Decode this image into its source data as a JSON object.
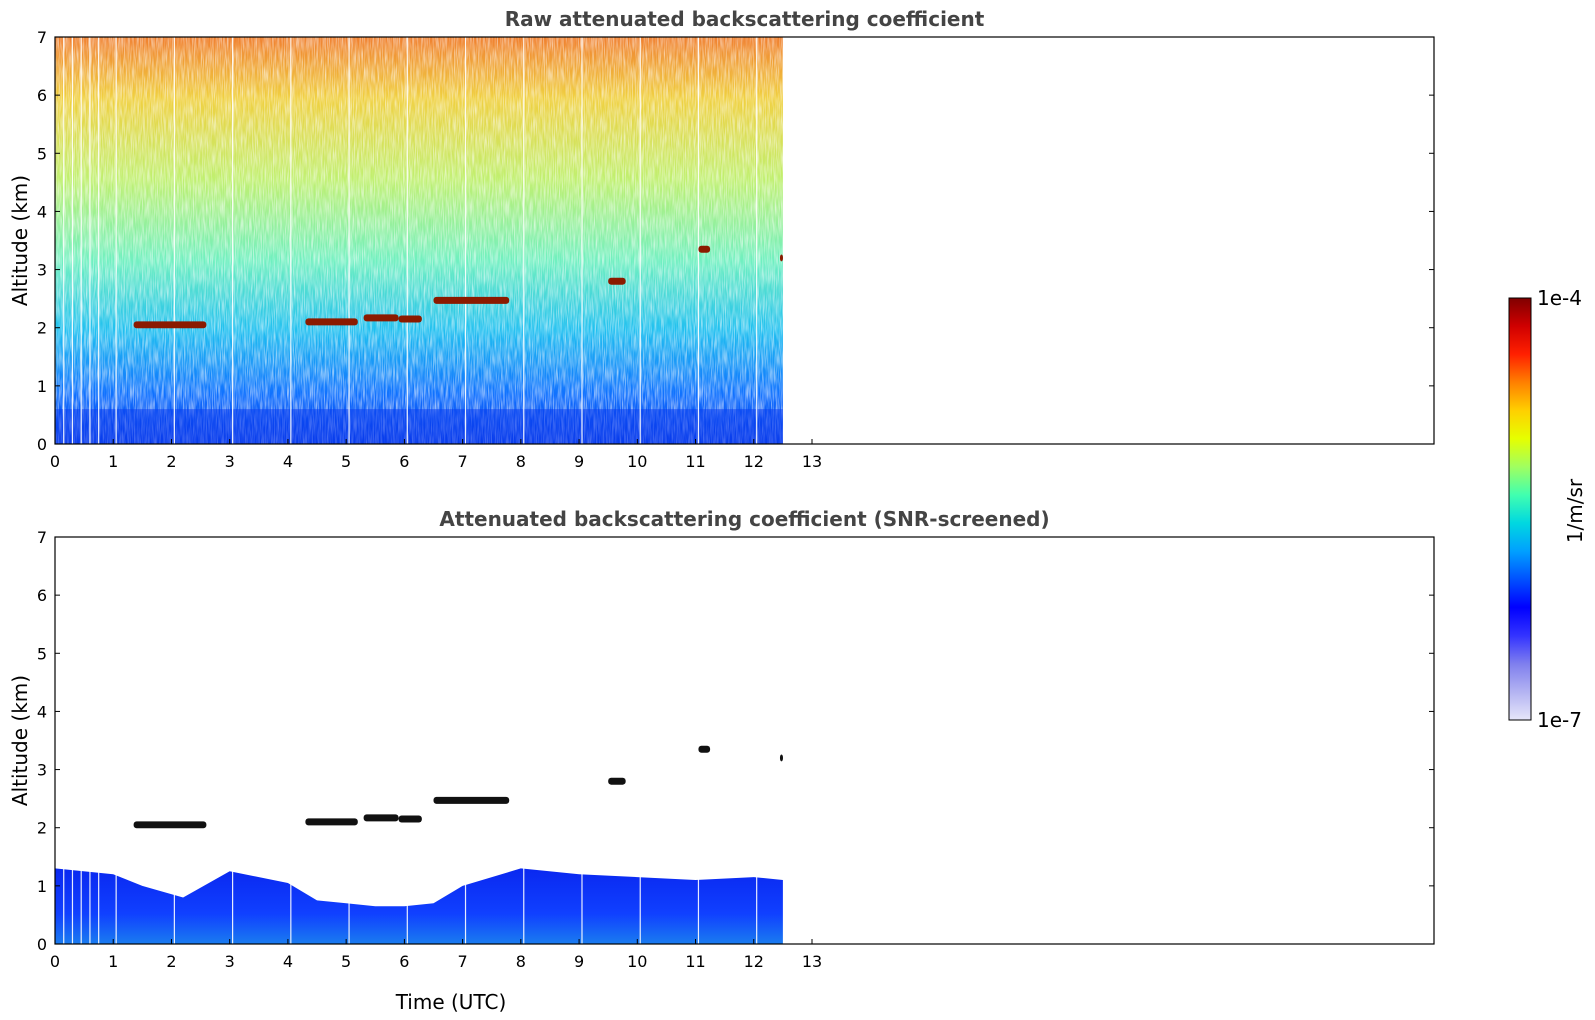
{
  "chart_data": [
    {
      "type": "heatmap",
      "title": "Raw attenuated backscattering coefficient",
      "xlabel": "",
      "ylabel": "Altitude (km)",
      "xlim": [
        0,
        24
      ],
      "ylim": [
        0,
        7
      ],
      "xticks": [
        "0",
        "1",
        "2",
        "3",
        "4",
        "5",
        "6",
        "7",
        "8",
        "9",
        "10",
        "11",
        "12",
        "13"
      ],
      "yticks": [
        "0",
        "1",
        "2",
        "3",
        "4",
        "5",
        "6",
        "7"
      ],
      "data_end_time": 12.5,
      "color_scale": "log",
      "cloud_layers": [
        {
          "t_start": 1.35,
          "t_end": 2.6,
          "alt": 2.05
        },
        {
          "t_start": 4.3,
          "t_end": 5.2,
          "alt": 2.1
        },
        {
          "t_start": 5.3,
          "t_end": 5.9,
          "alt": 2.17
        },
        {
          "t_start": 5.9,
          "t_end": 6.3,
          "alt": 2.15
        },
        {
          "t_start": 6.5,
          "t_end": 7.8,
          "alt": 2.47
        },
        {
          "t_start": 9.5,
          "t_end": 9.8,
          "alt": 2.8
        },
        {
          "t_start": 11.05,
          "t_end": 11.25,
          "alt": 3.35
        },
        {
          "t_start": 12.45,
          "t_end": 12.5,
          "alt": 3.2
        }
      ]
    },
    {
      "type": "heatmap",
      "title": "Attenuated backscattering coefficient (SNR-screened)",
      "xlabel": "Time (UTC)",
      "ylabel": "Altitude (km)",
      "xlim": [
        0,
        24
      ],
      "ylim": [
        0,
        7
      ],
      "xticks": [
        "0",
        "1",
        "2",
        "3",
        "4",
        "5",
        "6",
        "7",
        "8",
        "9",
        "10",
        "11",
        "12",
        "13"
      ],
      "yticks": [
        "0",
        "1",
        "2",
        "3",
        "4",
        "5",
        "6",
        "7"
      ],
      "data_end_time": 12.5,
      "color_scale": "log",
      "boundary_layer_top": [
        {
          "t": 0.0,
          "alt": 1.3
        },
        {
          "t": 1.0,
          "alt": 1.2
        },
        {
          "t": 1.5,
          "alt": 1.0
        },
        {
          "t": 2.2,
          "alt": 0.8
        },
        {
          "t": 3.0,
          "alt": 1.25
        },
        {
          "t": 4.0,
          "alt": 1.05
        },
        {
          "t": 4.5,
          "alt": 0.75
        },
        {
          "t": 5.0,
          "alt": 0.7
        },
        {
          "t": 5.5,
          "alt": 0.65
        },
        {
          "t": 6.0,
          "alt": 0.65
        },
        {
          "t": 6.5,
          "alt": 0.7
        },
        {
          "t": 7.0,
          "alt": 1.0
        },
        {
          "t": 8.0,
          "alt": 1.3
        },
        {
          "t": 9.0,
          "alt": 1.2
        },
        {
          "t": 10.0,
          "alt": 1.15
        },
        {
          "t": 11.0,
          "alt": 1.1
        },
        {
          "t": 12.0,
          "alt": 1.15
        },
        {
          "t": 12.5,
          "alt": 1.1
        }
      ],
      "cloud_layers": [
        {
          "t_start": 1.35,
          "t_end": 2.6,
          "alt": 2.05
        },
        {
          "t_start": 4.3,
          "t_end": 5.2,
          "alt": 2.1
        },
        {
          "t_start": 5.3,
          "t_end": 5.9,
          "alt": 2.17
        },
        {
          "t_start": 5.9,
          "t_end": 6.3,
          "alt": 2.15
        },
        {
          "t_start": 6.5,
          "t_end": 7.8,
          "alt": 2.47
        },
        {
          "t_start": 9.5,
          "t_end": 9.8,
          "alt": 2.8
        },
        {
          "t_start": 11.05,
          "t_end": 11.25,
          "alt": 3.35
        },
        {
          "t_start": 12.45,
          "t_end": 12.5,
          "alt": 3.2
        }
      ]
    }
  ],
  "colorbar": {
    "label": "1/m/sr",
    "min_label": "1e-7",
    "max_label": "1e-4",
    "scale": "log",
    "colormap": [
      "#e6e6fa",
      "#b3b3f2",
      "#7f7fee",
      "#3333ff",
      "#0000ff",
      "#0050ff",
      "#00a0ff",
      "#00d8e0",
      "#40ffb0",
      "#a0ff60",
      "#e6ff00",
      "#ffd000",
      "#ff8000",
      "#ff2000",
      "#d00000",
      "#800000"
    ]
  }
}
